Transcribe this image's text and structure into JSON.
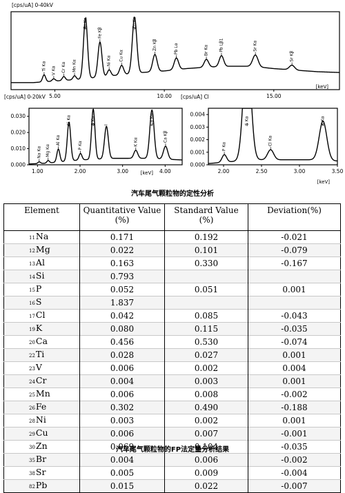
{
  "chart_data": [
    {
      "type": "line",
      "unit_label": "[cps/uA] 0-40kV",
      "xlabel": "[keV]",
      "xlim": [
        3.0,
        18.0
      ],
      "xticks": [
        "5.00",
        "10.00",
        "15.00"
      ],
      "ylim": [
        0,
        1
      ],
      "yticks": [],
      "baseline": [
        [
          3.0,
          0.09
        ],
        [
          4.0,
          0.09
        ],
        [
          5.0,
          0.11
        ],
        [
          6.0,
          0.13
        ],
        [
          7.0,
          0.16
        ],
        [
          9.0,
          0.22
        ],
        [
          10.0,
          0.24
        ],
        [
          11.0,
          0.27
        ],
        [
          12.0,
          0.29
        ],
        [
          13.0,
          0.3
        ],
        [
          14.0,
          0.3
        ],
        [
          15.0,
          0.27
        ],
        [
          16.0,
          0.25
        ],
        [
          17.0,
          0.23
        ],
        [
          18.0,
          0.22
        ]
      ],
      "peaks": [
        {
          "label": "Ti Kα",
          "x": 4.51,
          "height": 0.09,
          "width": 0.07
        },
        {
          "label": "V Kα",
          "x": 4.95,
          "height": 0.03,
          "width": 0.07
        },
        {
          "label": "Cr Kα",
          "x": 5.41,
          "height": 0.05,
          "width": 0.07
        },
        {
          "label": "Mn Kα",
          "x": 5.9,
          "height": 0.05,
          "width": 0.07
        },
        {
          "label": "Fe Kα",
          "x": 6.4,
          "height": 0.78,
          "width": 0.09
        },
        {
          "label": "Fe Kβ",
          "x": 7.06,
          "height": 0.45,
          "width": 0.09
        },
        {
          "label": "Ni Kα",
          "x": 7.48,
          "height": 0.08,
          "width": 0.08
        },
        {
          "label": "Cu Kα",
          "x": 8.05,
          "height": 0.12,
          "width": 0.09
        },
        {
          "label": "Zn Kα",
          "x": 8.64,
          "height": 0.72,
          "width": 0.1
        },
        {
          "label": "Zn Kβ",
          "x": 9.57,
          "height": 0.22,
          "width": 0.1
        },
        {
          "label": "Pb Lα",
          "x": 10.55,
          "height": 0.15,
          "width": 0.1
        },
        {
          "label": "Br Kα",
          "x": 11.92,
          "height": 0.1,
          "width": 0.1
        },
        {
          "label": "Pb Lβ1",
          "x": 12.61,
          "height": 0.14,
          "width": 0.1
        },
        {
          "label": "Sr Kα",
          "x": 14.16,
          "height": 0.15,
          "width": 0.12
        },
        {
          "label": "Sr Kβ",
          "x": 15.83,
          "height": 0.06,
          "width": 0.12
        }
      ]
    },
    {
      "type": "line",
      "unit_label": "[cps/uA] 0-20kV",
      "xlabel": "[keV]",
      "xlim": [
        0.8,
        4.4
      ],
      "xticks": [
        "1.00",
        "2.00",
        "3.00",
        "4.00"
      ],
      "ylim": [
        0,
        0.035
      ],
      "yticks": [
        "0.000",
        "0.010",
        "0.020",
        "0.030"
      ],
      "baseline": [
        [
          0.8,
          0.0005
        ],
        [
          1.2,
          0.001
        ],
        [
          1.6,
          0.002
        ],
        [
          2.0,
          0.003
        ],
        [
          2.4,
          0.0035
        ],
        [
          2.8,
          0.004
        ],
        [
          3.2,
          0.004
        ],
        [
          3.6,
          0.004
        ],
        [
          4.0,
          0.0035
        ],
        [
          4.4,
          0.003
        ]
      ],
      "peaks": [
        {
          "label": "Na Kα",
          "x": 1.04,
          "height": 0.001,
          "width": 0.03
        },
        {
          "label": "Mg Kα",
          "x": 1.25,
          "height": 0.0015,
          "width": 0.03
        },
        {
          "label": "Al Kα",
          "x": 1.49,
          "height": 0.008,
          "width": 0.035
        },
        {
          "label": "Si Kα",
          "x": 1.74,
          "height": 0.024,
          "width": 0.04
        },
        {
          "label": "P Kα",
          "x": 2.01,
          "height": 0.004,
          "width": 0.035
        },
        {
          "label": "S Kα",
          "x": 2.31,
          "height": 0.031,
          "width": 0.04
        },
        {
          "label": "I",
          "x": 2.62,
          "height": 0.02,
          "width": 0.045
        },
        {
          "label": "K Kα",
          "x": 3.31,
          "height": 0.005,
          "width": 0.045
        },
        {
          "label": "Ca Kα",
          "x": 3.69,
          "height": 0.03,
          "width": 0.05
        },
        {
          "label": "Ca Kβ",
          "x": 4.01,
          "height": 0.008,
          "width": 0.05
        }
      ]
    },
    {
      "type": "line",
      "unit_label": "[cps/uA] Cl",
      "xlabel": "[keV]",
      "xlim": [
        1.8,
        3.5
      ],
      "xticks": [
        "2.00",
        "2.50",
        "3.00",
        "3.50"
      ],
      "ylim": [
        0,
        0.0045
      ],
      "yticks": [
        "0.000",
        "0.001",
        "0.002",
        "0.003",
        "0.004"
      ],
      "baseline": [
        [
          1.8,
          0.0001
        ],
        [
          2.0,
          0.0002
        ],
        [
          2.4,
          0.0004
        ],
        [
          2.8,
          0.0004
        ],
        [
          3.2,
          0.0004
        ],
        [
          3.5,
          0.0003
        ]
      ],
      "peaks": [
        {
          "label": "P Kα",
          "x": 2.01,
          "height": 0.0006,
          "width": 0.03
        },
        {
          "label": "S Kα",
          "x": 2.31,
          "height": 0.009,
          "width": 0.05
        },
        {
          "label": "Cl Kα",
          "x": 2.62,
          "height": 0.0008,
          "width": 0.04
        },
        {
          "label": "K Kα",
          "x": 3.31,
          "height": 0.0031,
          "width": 0.05
        }
      ]
    }
  ],
  "captions": {
    "spectra": "汽车尾气颗粒物的定性分析",
    "table": "汽车尾气颗粒物的FP法定量分析结果"
  },
  "table": {
    "headers": [
      "Element",
      "Quantitative Value (%)",
      "Standard Value (%)",
      "Deviation(%)"
    ],
    "rows": [
      {
        "z": "11",
        "symbol": "Na",
        "quant": "0.171",
        "standard": "0.192",
        "deviation": "-0.021"
      },
      {
        "z": "12",
        "symbol": "Mg",
        "quant": "0.022",
        "standard": "0.101",
        "deviation": "-0.079"
      },
      {
        "z": "13",
        "symbol": "Al",
        "quant": "0.163",
        "standard": "0.330",
        "deviation": "-0.167"
      },
      {
        "z": "14",
        "symbol": "Si",
        "quant": "0.793",
        "standard": "",
        "deviation": ""
      },
      {
        "z": "15",
        "symbol": "P",
        "quant": "0.052",
        "standard": "0.051",
        "deviation": "0.001"
      },
      {
        "z": "16",
        "symbol": "S",
        "quant": "1.837",
        "standard": "",
        "deviation": ""
      },
      {
        "z": "17",
        "symbol": "Cl",
        "quant": "0.042",
        "standard": "0.085",
        "deviation": "-0.043"
      },
      {
        "z": "19",
        "symbol": "K",
        "quant": "0.080",
        "standard": "0.115",
        "deviation": "-0.035"
      },
      {
        "z": "20",
        "symbol": "Ca",
        "quant": "0.456",
        "standard": "0.530",
        "deviation": "-0.074"
      },
      {
        "z": "22",
        "symbol": "Ti",
        "quant": "0.028",
        "standard": "0.027",
        "deviation": "0.001"
      },
      {
        "z": "23",
        "symbol": "V",
        "quant": "0.006",
        "standard": "0.002",
        "deviation": "0.004"
      },
      {
        "z": "24",
        "symbol": "Cr",
        "quant": "0.004",
        "standard": "0.003",
        "deviation": "0.001"
      },
      {
        "z": "25",
        "symbol": "Mn",
        "quant": "0.006",
        "standard": "0.008",
        "deviation": "-0.002"
      },
      {
        "z": "26",
        "symbol": "Fe",
        "quant": "0.302",
        "standard": "0.490",
        "deviation": "-0.188"
      },
      {
        "z": "28",
        "symbol": "Ni",
        "quant": "0.003",
        "standard": "0.002",
        "deviation": "0.001"
      },
      {
        "z": "29",
        "symbol": "Cu",
        "quant": "0.006",
        "standard": "0.007",
        "deviation": "-0.001"
      },
      {
        "z": "30",
        "symbol": "Zn",
        "quant": "0.069",
        "standard": "0.104",
        "deviation": "-0.035"
      },
      {
        "z": "35",
        "symbol": "Br",
        "quant": "0.004",
        "standard": "0.006",
        "deviation": "-0.002"
      },
      {
        "z": "38",
        "symbol": "Sr",
        "quant": "0.005",
        "standard": "0.009",
        "deviation": "-0.004"
      },
      {
        "z": "82",
        "symbol": "Pb",
        "quant": "0.015",
        "standard": "0.022",
        "deviation": "-0.007"
      }
    ]
  }
}
